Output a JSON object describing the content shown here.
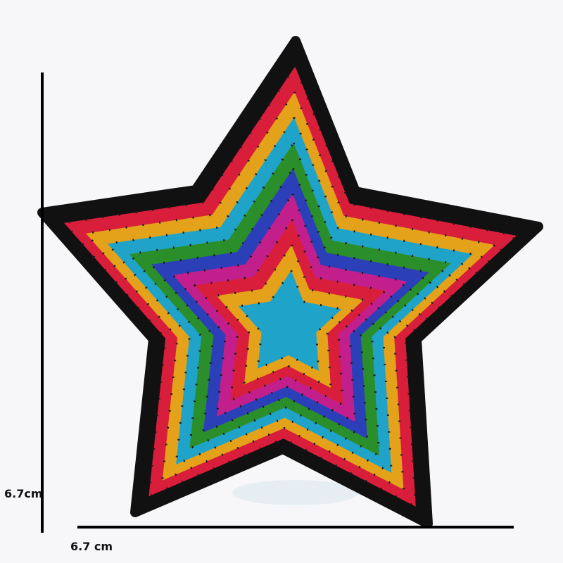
{
  "measurements": {
    "height_label": "6.7cm",
    "width_label": "6.7 cm"
  },
  "subject": {
    "band_colors": [
      "#111111",
      "#d81e3a",
      "#e3a21a",
      "#1fa3c9",
      "#2a8f2a",
      "#2b3fb8",
      "#c21f8c",
      "#d81e3a",
      "#e3a21a",
      "#1fa3c9"
    ],
    "outline_color": "#111111"
  }
}
